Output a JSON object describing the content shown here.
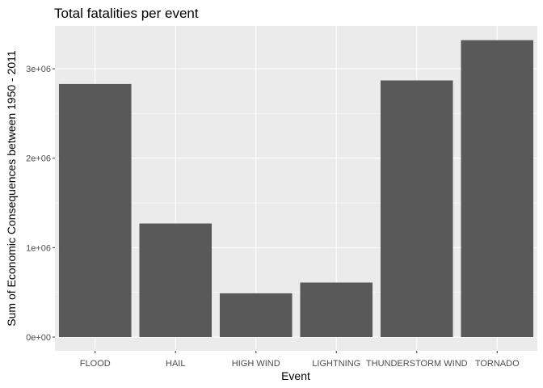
{
  "chart_data": {
    "type": "bar",
    "title": "Total fatalities per event",
    "xlabel": "Event",
    "ylabel": "Sum of Economic Consequences between 1950 - 2011",
    "categories": [
      "FLOOD",
      "HAIL",
      "HIGH WIND",
      "LIGHTNING",
      "THUNDERSTORM WIND",
      "TORNADO"
    ],
    "values": [
      2830000,
      1270000,
      490000,
      610000,
      2870000,
      3320000
    ],
    "ylim": [
      0,
      3480000
    ],
    "yticks": [
      {
        "value": 0,
        "label": "0e+00"
      },
      {
        "value": 1000000,
        "label": "1e+06"
      },
      {
        "value": 2000000,
        "label": "2e+06"
      },
      {
        "value": 3000000,
        "label": "3e+06"
      }
    ],
    "grid": true,
    "bar_color": "#595959",
    "panel_color": "#ebebeb"
  }
}
